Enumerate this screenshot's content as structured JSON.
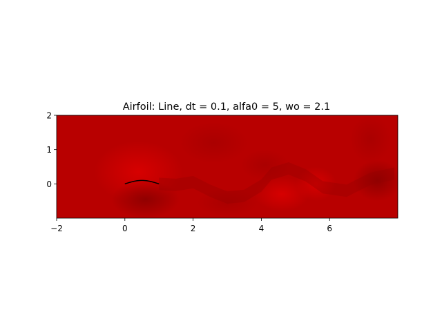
{
  "chart_data": {
    "type": "heatmap",
    "title": "Airfoil: Line, dt = 0.1, alfa0 = 5, wo = 2.1",
    "xlabel": "",
    "ylabel": "",
    "xlim": [
      -2,
      8
    ],
    "ylim": [
      -1,
      2
    ],
    "x_ticks": [
      -2,
      0,
      2,
      4,
      6
    ],
    "y_ticks": [
      0,
      1,
      2
    ],
    "x_tick_labels": [
      "−2",
      "0",
      "2",
      "4",
      "6"
    ],
    "y_tick_labels": [
      "0",
      "1",
      "2"
    ],
    "grid": false,
    "colormap": "red",
    "colors": {
      "field_base": "#b80000",
      "field_light": "#d40000",
      "field_dark": "#920000",
      "airfoil": "#000000"
    },
    "airfoil": {
      "chord_start": 0,
      "chord_end": 1,
      "max_camber": 0.1,
      "camber_position": 0.5
    },
    "wake_centerline": [
      [
        1,
        0.0
      ],
      [
        1.5,
        -0.03
      ],
      [
        2,
        0.05
      ],
      [
        2.5,
        -0.2
      ],
      [
        3,
        -0.4
      ],
      [
        3.5,
        -0.35
      ],
      [
        4,
        -0.05
      ],
      [
        4.3,
        0.3
      ],
      [
        4.8,
        0.45
      ],
      [
        5.3,
        0.25
      ],
      [
        5.8,
        -0.1
      ],
      [
        6.5,
        -0.2
      ],
      [
        7.2,
        0.15
      ],
      [
        7.9,
        0.3
      ]
    ]
  }
}
